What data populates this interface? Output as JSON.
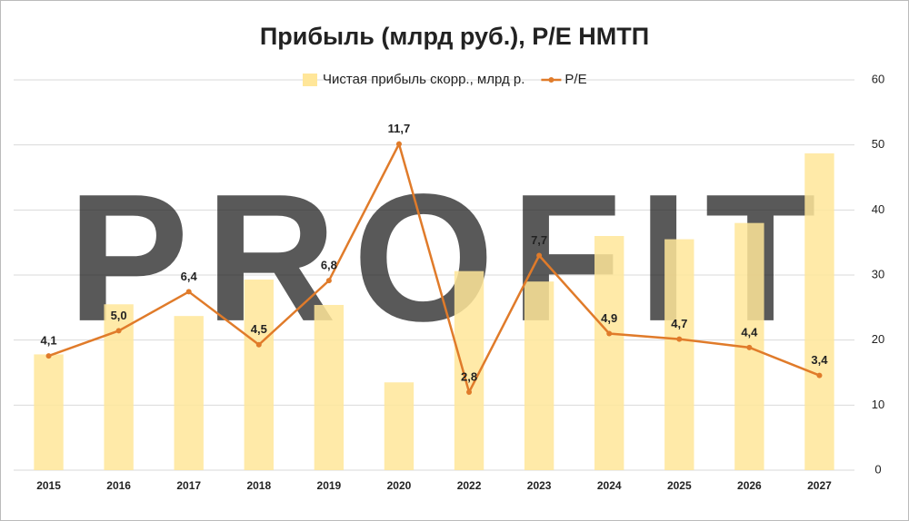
{
  "chart_data": {
    "type": "bar-line",
    "title": "Прибыль (млрд руб.), P/E НМТП",
    "watermark": "PROFIT",
    "categories": [
      "2015",
      "2016",
      "2017",
      "2018",
      "2019",
      "2020",
      "2022",
      "2023",
      "2024",
      "2025",
      "2026",
      "2027"
    ],
    "series": [
      {
        "name": "Чистая прибыль скорр., млрд р.",
        "type": "bar",
        "color": "#ffe699",
        "values": [
          17.8,
          25.5,
          23.7,
          29.3,
          25.4,
          13.5,
          30.6,
          29,
          36,
          35.5,
          38,
          48.7
        ]
      },
      {
        "name": "P/E",
        "type": "line",
        "axis": "y2",
        "color": "#e07b2a",
        "values": [
          4.1,
          5.0,
          6.4,
          4.5,
          6.8,
          11.7,
          2.8,
          7.7,
          4.9,
          4.7,
          4.4,
          3.4
        ],
        "value_labels": [
          "4,1",
          "5,0",
          "6,4",
          "4,5",
          "6,8",
          "11,7",
          "2,8",
          "7,7",
          "4,9",
          "4,7",
          "4,4",
          "3,4"
        ]
      }
    ],
    "ylim": [
      0,
      60
    ],
    "yticks": [
      0,
      10,
      20,
      30,
      40,
      50,
      60
    ],
    "y2lim": [
      0,
      14
    ],
    "grid": true,
    "legend": "top"
  }
}
